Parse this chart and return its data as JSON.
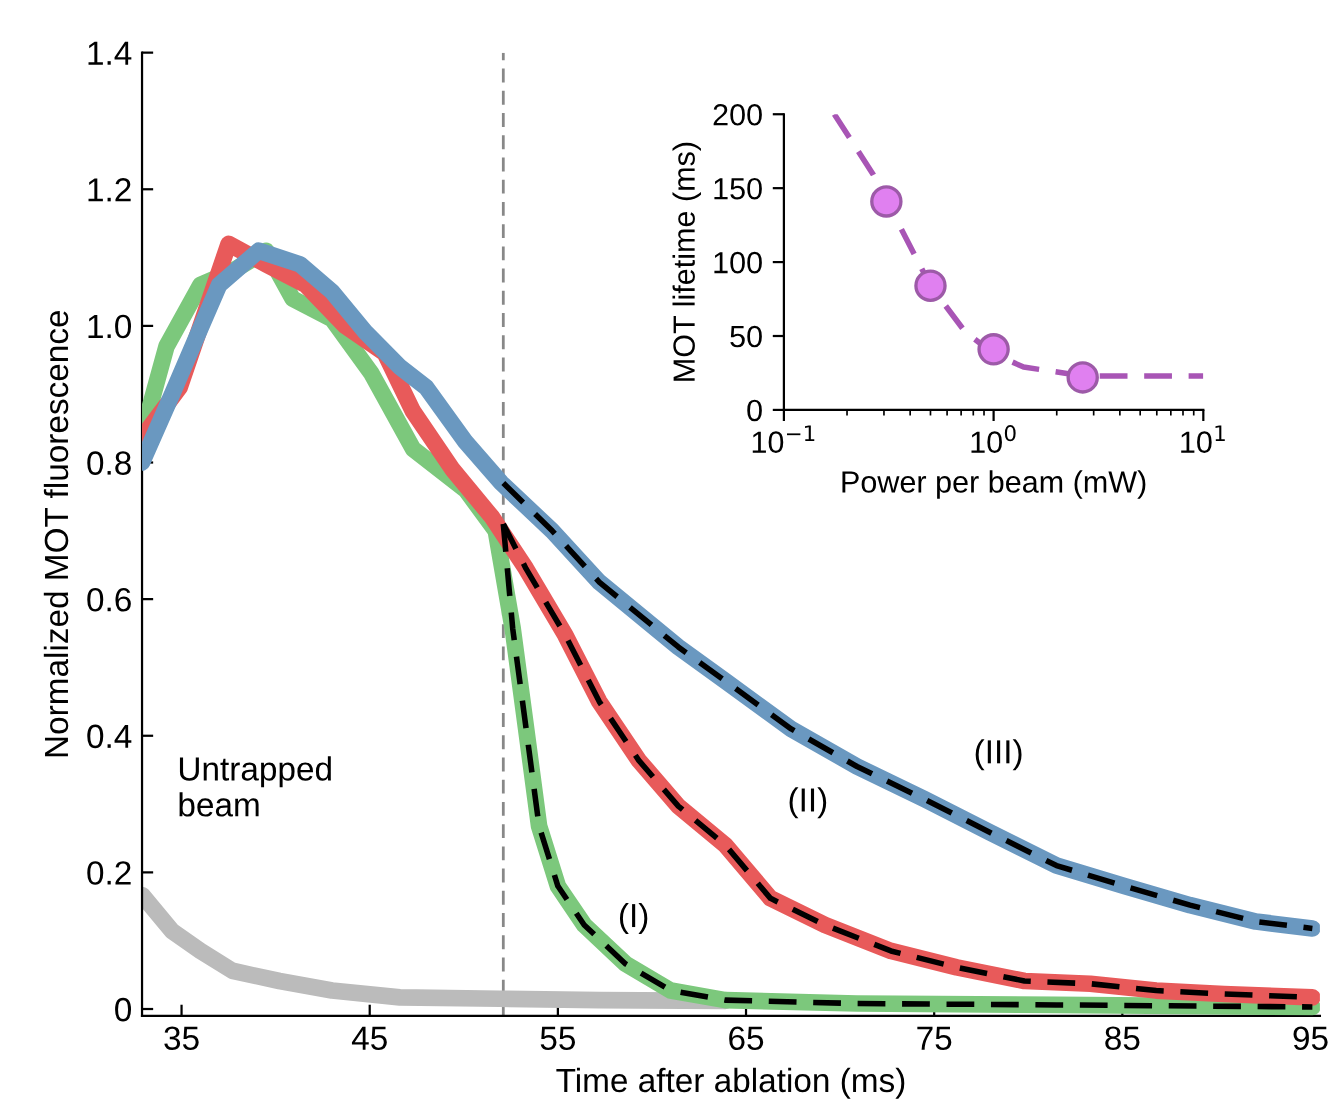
{
  "chart_data": [
    {
      "type": "line",
      "xlabel": "Time after ablation (ms)",
      "ylabel": "Normalized MOT fluorescence",
      "xlim": [
        32.9,
        95.5
      ],
      "ylim": [
        -0.01,
        1.4
      ],
      "xticks": [
        35,
        45,
        55,
        65,
        75,
        85,
        95
      ],
      "yticks": [
        0,
        0.2,
        0.4,
        0.6,
        0.8,
        {
          "value": 1,
          "label": "1.0"
        },
        1.2,
        1.4
      ],
      "grid": false,
      "line_style": "solid",
      "ref_lines": [
        {
          "axis": "x",
          "value": 52.1,
          "color": "#888888",
          "line_style": "dashed"
        }
      ],
      "annotations": [
        "Untrapped\nbeam",
        "(I)",
        "(II)",
        "(III)"
      ],
      "series": [
        {
          "color": "#bbbbbb",
          "x": [
            32.9,
            34.5,
            36.0,
            37.7,
            40.2,
            43.0,
            46.6,
            51.9,
            57.2,
            63.9
          ],
          "values": [
            0.167,
            0.114,
            0.085,
            0.056,
            0.041,
            0.027,
            0.017,
            0.015,
            0.013,
            0.012
          ]
        },
        {
          "color": "#7cc87c",
          "x": [
            32.9,
            34.2,
            36.0,
            37.7,
            39.5,
            40.9,
            43.0,
            45.1,
            47.3,
            50.1,
            51.7,
            52.6,
            53.3,
            54.0,
            55.0,
            56.4,
            58.6,
            61.0,
            63.9,
            70.9,
            81.5,
            95.1
          ],
          "values": [
            0.84,
            0.97,
            1.06,
            1.08,
            1.11,
            1.04,
            1.01,
            0.93,
            0.82,
            0.76,
            0.7,
            0.557,
            0.413,
            0.268,
            0.18,
            0.123,
            0.066,
            0.027,
            0.013,
            0.008,
            0.006,
            0.003
          ]
        },
        {
          "color": "#e85a5a",
          "x": [
            33.0,
            34.9,
            37.5,
            39.5,
            41.6,
            43.7,
            45.8,
            47.3,
            49.4,
            51.5,
            53.3,
            55.4,
            57.2,
            59.3,
            61.4,
            63.9,
            66.3,
            69.2,
            72.7,
            76.2,
            79.8,
            83.3,
            86.8,
            90.4,
            95.1
          ],
          "values": [
            0.84,
            0.91,
            1.12,
            1.09,
            1.06,
            1.0,
            0.96,
            0.875,
            0.79,
            0.72,
            0.645,
            0.547,
            0.45,
            0.364,
            0.297,
            0.24,
            0.162,
            0.123,
            0.085,
            0.061,
            0.041,
            0.037,
            0.027,
            0.022,
            0.017
          ]
        },
        {
          "color": "#6a98c0",
          "x": [
            32.9,
            34.5,
            35.9,
            37.0,
            39.1,
            41.3,
            43.0,
            44.8,
            46.6,
            48.0,
            50.1,
            52.0,
            54.7,
            57.2,
            61.4,
            63.9,
            67.4,
            70.9,
            74.5,
            78.0,
            81.5,
            85.1,
            88.6,
            92.1,
            95.1
          ],
          "values": [
            0.8,
            0.9,
            0.99,
            1.06,
            1.11,
            1.09,
            1.05,
            0.99,
            0.94,
            0.91,
            0.83,
            0.77,
            0.7,
            0.625,
            0.53,
            0.48,
            0.41,
            0.355,
            0.307,
            0.258,
            0.21,
            0.18,
            0.152,
            0.128,
            0.118
          ]
        },
        {
          "color": "#000000",
          "line_style": "dashed",
          "x": [
            52.1,
            52.6,
            53.3,
            54.0,
            55.0,
            56.4,
            58.6,
            61.0,
            63.9,
            70.9,
            81.5,
            95.1
          ],
          "values": [
            0.71,
            0.557,
            0.413,
            0.268,
            0.18,
            0.123,
            0.066,
            0.027,
            0.013,
            0.008,
            0.006,
            0.003
          ]
        },
        {
          "color": "#000000",
          "line_style": "dashed",
          "x": [
            52.1,
            53.3,
            55.4,
            57.2,
            59.3,
            61.4,
            63.9,
            66.3,
            69.2,
            72.7,
            76.2,
            79.8,
            83.3,
            86.8,
            90.4,
            95.1
          ],
          "values": [
            0.71,
            0.645,
            0.547,
            0.45,
            0.364,
            0.297,
            0.24,
            0.162,
            0.123,
            0.085,
            0.061,
            0.041,
            0.037,
            0.027,
            0.022,
            0.017
          ]
        },
        {
          "color": "#000000",
          "line_style": "dashed",
          "x": [
            52.1,
            54.7,
            57.2,
            61.4,
            63.9,
            67.4,
            70.9,
            74.5,
            78.0,
            81.5,
            85.1,
            88.6,
            92.1,
            95.1
          ],
          "values": [
            0.77,
            0.7,
            0.625,
            0.53,
            0.48,
            0.41,
            0.355,
            0.307,
            0.258,
            0.21,
            0.18,
            0.152,
            0.128,
            0.118
          ]
        }
      ]
    },
    {
      "type": "scatter",
      "xlabel": "Power per beam (mW)",
      "ylabel": "MOT lifetime (ms)",
      "log": "x",
      "xlim": [
        0.1,
        10
      ],
      "ylim": [
        0,
        200
      ],
      "xticks": [
        {
          "value": 0.1,
          "label": "10$^{−1}$"
        },
        {
          "value": 1,
          "label": "10$^{0}$"
        },
        {
          "value": 10,
          "label": "10$^{1}$"
        }
      ],
      "yticks": [
        0,
        50,
        100,
        150,
        200
      ],
      "grid": false,
      "series": [
        {
          "type": "line",
          "line_style": "dashed",
          "color": "#a855b5",
          "x": [
            0.174,
            0.267,
            0.5,
            0.73,
            1.0,
            1.39,
            2.66,
            10
          ],
          "values": [
            200,
            159,
            84,
            53,
            38,
            29,
            23,
            23
          ]
        },
        {
          "color": "#e080f0",
          "marker": "circle",
          "x": [
            0.308,
            0.5,
            1.0,
            2.66
          ],
          "values": [
            141,
            84,
            41,
            22
          ]
        }
      ]
    }
  ]
}
